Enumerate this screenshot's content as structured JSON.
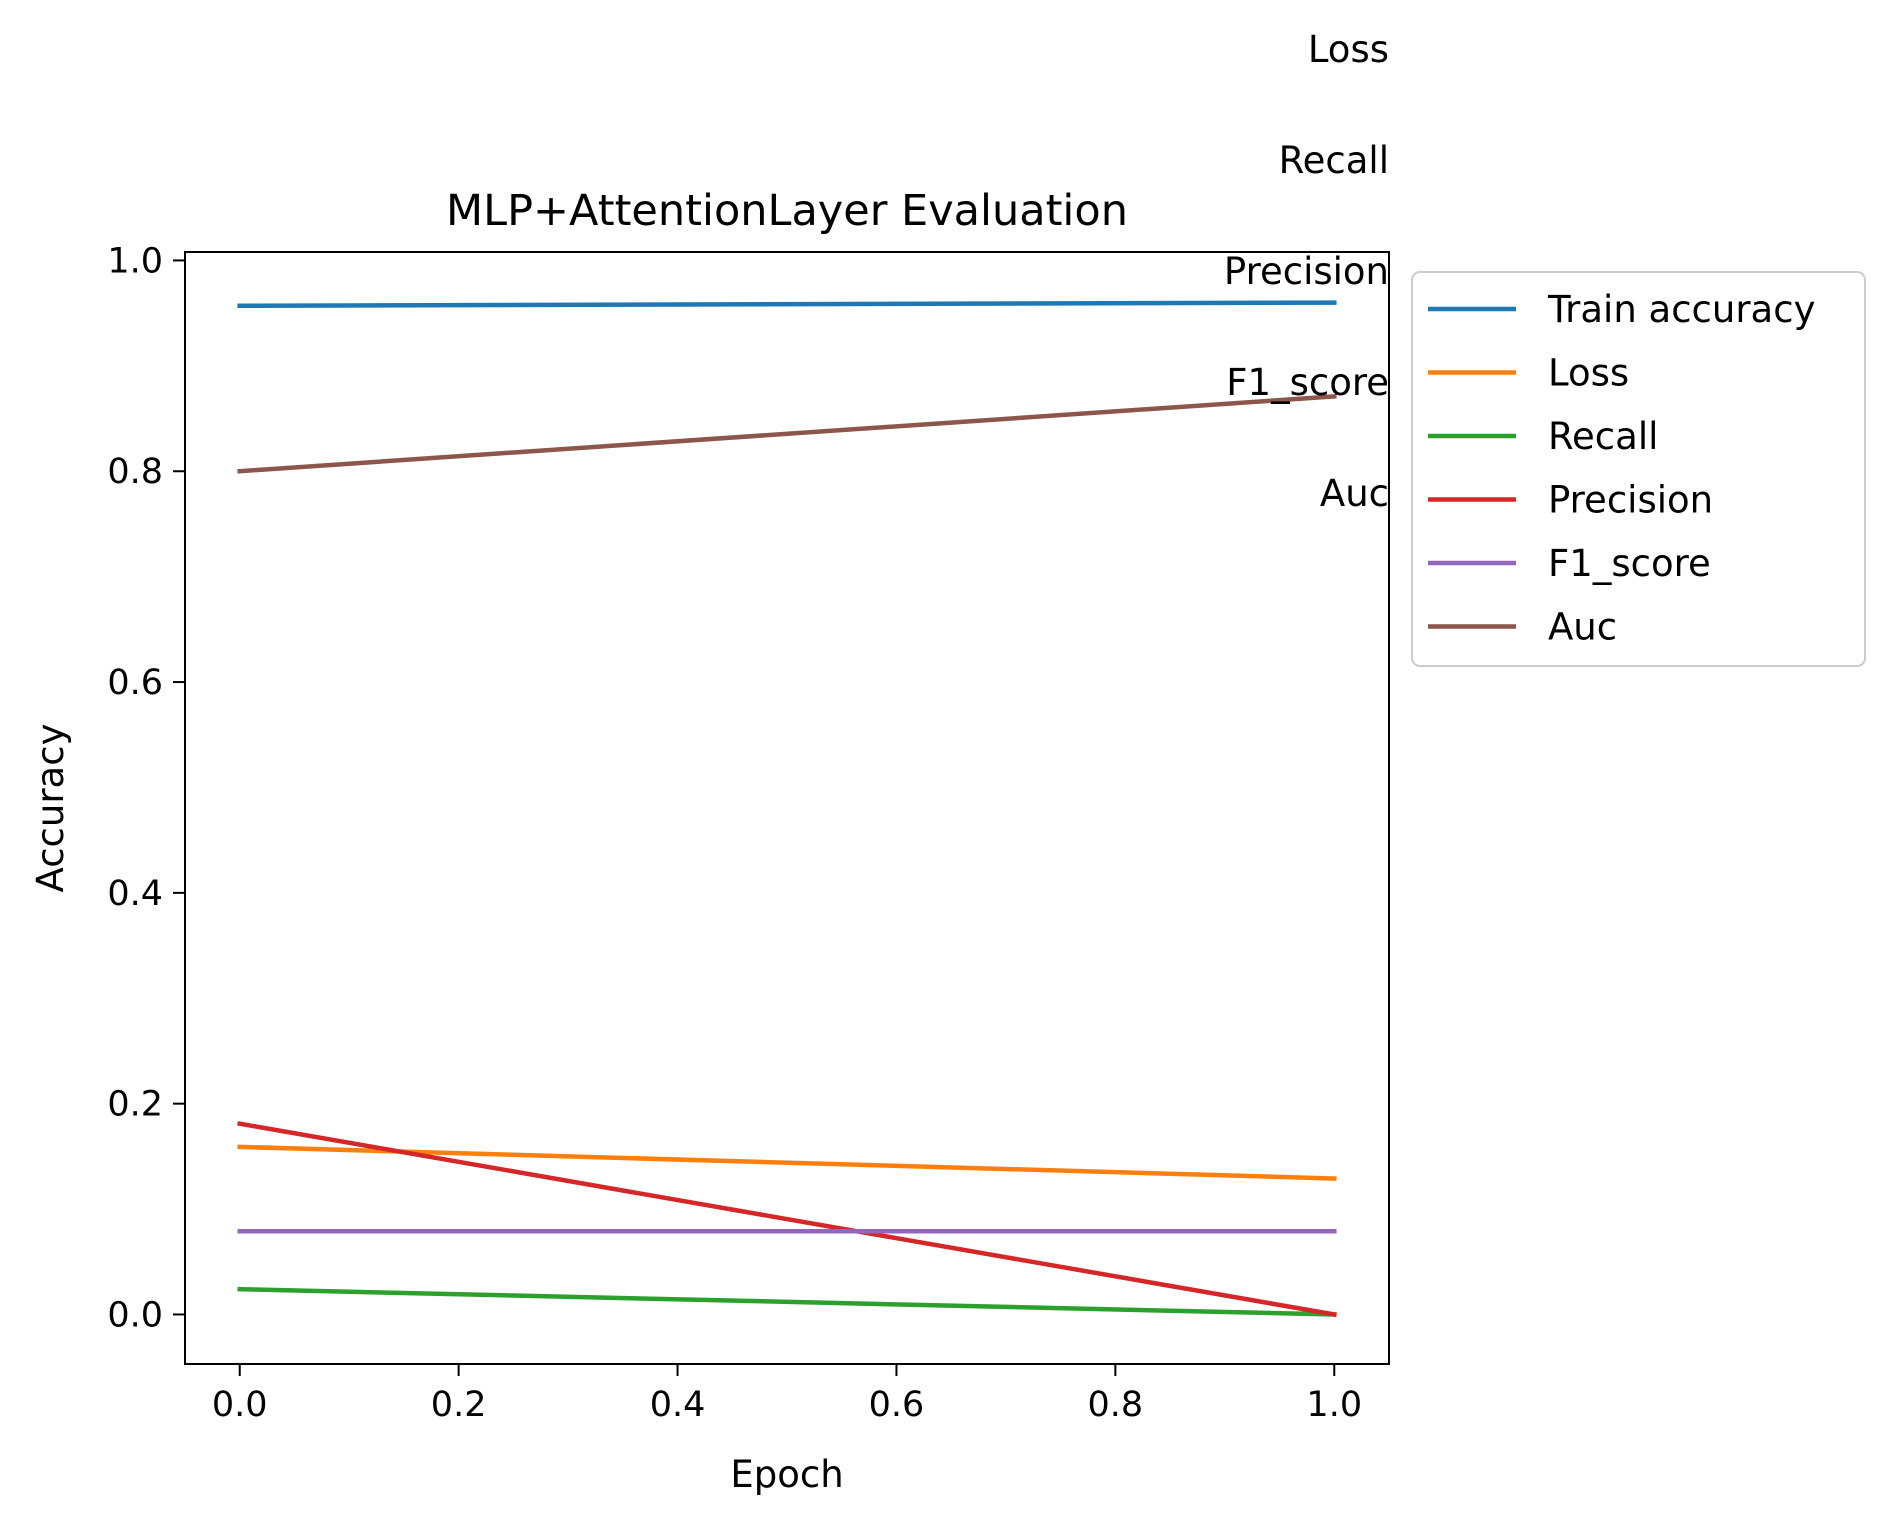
{
  "chart_data": {
    "type": "line",
    "title": "MLP+AttentionLayer Evaluation",
    "xlabel": "Epoch",
    "ylabel": "Accuracy",
    "xlim": [
      -0.05,
      1.05
    ],
    "ylim": [
      -0.047,
      1.008
    ],
    "xticks": [
      0.0,
      0.2,
      0.4,
      0.6,
      0.8,
      1.0
    ],
    "xtick_labels": [
      "0.0",
      "0.2",
      "0.4",
      "0.6",
      "0.8",
      "1.0"
    ],
    "yticks": [
      0.0,
      0.2,
      0.4,
      0.6,
      0.8,
      1.0
    ],
    "ytick_labels": [
      "0.0",
      "0.2",
      "0.4",
      "0.6",
      "0.8",
      "1.0"
    ],
    "x": [
      0,
      1
    ],
    "grid": false,
    "legend_placement": "outside-upper-right",
    "series": [
      {
        "name": "Train accuracy",
        "color": "#1f77b4",
        "values": [
          0.957,
          0.96
        ]
      },
      {
        "name": "Loss",
        "color": "#ff7f0e",
        "values": [
          0.159,
          0.129
        ]
      },
      {
        "name": "Recall",
        "color": "#2ca02c",
        "values": [
          0.024,
          0.0
        ]
      },
      {
        "name": "Precision",
        "color": "#d62728",
        "values": [
          0.181,
          0.0
        ]
      },
      {
        "name": "F1_score",
        "color": "#9467bd",
        "values": [
          0.079,
          0.079
        ]
      },
      {
        "name": "Auc",
        "color": "#8c564b",
        "values": [
          0.8,
          0.871
        ]
      }
    ],
    "annotations": [
      "Loss",
      "Recall",
      "Precision",
      "F1_score",
      "Auc"
    ]
  }
}
